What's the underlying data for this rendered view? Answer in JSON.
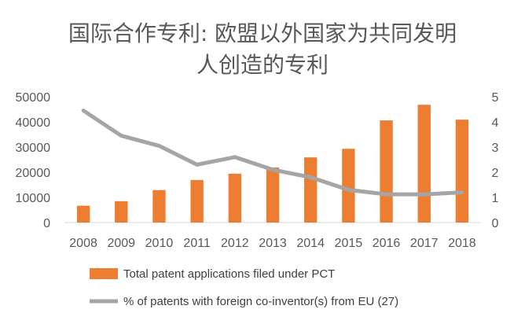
{
  "chart_data": {
    "type": "bar",
    "title_lines": [
      "国际合作专利: 欧盟以外国家为共同发明",
      "人创造的专利"
    ],
    "categories": [
      "2008",
      "2009",
      "2010",
      "2011",
      "2012",
      "2013",
      "2014",
      "2015",
      "2016",
      "2017",
      "2018"
    ],
    "series": [
      {
        "name": "Total patent applications filed under PCT",
        "kind": "bar",
        "axis": "left",
        "color": "#ED7D31",
        "values": [
          6700,
          8500,
          12900,
          16900,
          19400,
          21900,
          25900,
          29300,
          40600,
          46800,
          40900
        ]
      },
      {
        "name": "% of patents with foreign co-inventor(s) from EU (27)",
        "kind": "line",
        "axis": "right",
        "color": "#A5A5A5",
        "values": [
          4.45,
          3.45,
          3.05,
          2.3,
          2.6,
          2.1,
          1.8,
          1.3,
          1.12,
          1.12,
          1.2
        ]
      }
    ],
    "y_left": {
      "min": 0,
      "max": 50000,
      "ticks": [
        "0",
        "10000",
        "20000",
        "30000",
        "40000",
        "50000"
      ]
    },
    "y_right": {
      "min": 0,
      "max": 5,
      "ticks": [
        "0",
        "1",
        "2",
        "3",
        "4",
        "5"
      ]
    },
    "grid": false,
    "legend_position": "bottom"
  }
}
